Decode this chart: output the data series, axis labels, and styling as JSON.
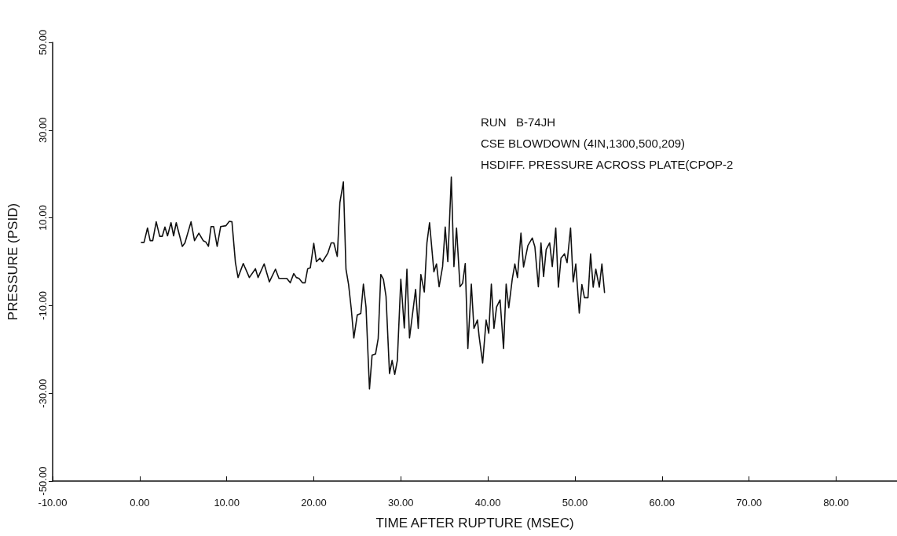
{
  "chart_data": {
    "type": "line",
    "xlabel": "TIME AFTER RUPTURE (MSEC)",
    "ylabel": "PRESSURE (PSID)",
    "annotations": [
      "RUN   B-74JH",
      "CSE BLOWDOWN (4IN,1300,500,209)",
      "HSDIFF. PRESSURE ACROSS PLATE(CPOP-2"
    ],
    "xlim": [
      -10,
      87
    ],
    "ylim": [
      -50,
      50
    ],
    "xticks": [
      {
        "value": -10,
        "label": "-10.00"
      },
      {
        "value": 0,
        "label": "0.00"
      },
      {
        "value": 10,
        "label": "10.00"
      },
      {
        "value": 20,
        "label": "20.00"
      },
      {
        "value": 30,
        "label": "30.00"
      },
      {
        "value": 40,
        "label": "40.00"
      },
      {
        "value": 50,
        "label": "50.00"
      },
      {
        "value": 60,
        "label": "60.00"
      },
      {
        "value": 70,
        "label": "70.00"
      },
      {
        "value": 80,
        "label": "80.00"
      }
    ],
    "yticks": [
      {
        "value": -50,
        "label": "-50.00"
      },
      {
        "value": -30,
        "label": "-30.00"
      },
      {
        "value": -10,
        "label": "-10.00"
      },
      {
        "value": 10,
        "label": "10.00"
      },
      {
        "value": 30,
        "label": "30.00"
      },
      {
        "value": 50,
        "label": "50.00"
      }
    ],
    "marker": "none",
    "line_style": "solid",
    "series": [
      {
        "color": "#111111",
        "x": [
          0.2,
          0.5,
          0.9,
          1.2,
          1.5,
          1.9,
          2.3,
          2.6,
          2.9,
          3.2,
          3.6,
          3.9,
          4.2,
          4.9,
          5.2,
          5.9,
          6.3,
          6.8,
          7.3,
          7.6,
          7.9,
          8.2,
          8.5,
          8.9,
          9.3,
          9.9,
          10.3,
          10.6,
          11.0,
          11.3,
          11.9,
          12.6,
          13.3,
          13.6,
          14.3,
          14.9,
          15.6,
          16.0,
          16.9,
          17.3,
          17.7,
          18.0,
          18.3,
          18.7,
          19.0,
          19.3,
          19.6,
          20.0,
          20.3,
          20.7,
          21.0,
          21.6,
          22.0,
          22.3,
          22.7,
          23.0,
          23.4,
          23.7,
          24.0,
          24.3,
          24.6,
          25.0,
          25.4,
          25.7,
          26.0,
          26.4,
          26.7,
          27.1,
          27.4,
          27.7,
          28.0,
          28.3,
          28.7,
          29.0,
          29.3,
          29.6,
          30.0,
          30.4,
          30.7,
          31.0,
          31.7,
          32.0,
          32.3,
          32.7,
          33.0,
          33.3,
          33.8,
          34.1,
          34.4,
          34.8,
          35.1,
          35.4,
          35.8,
          36.1,
          36.4,
          36.8,
          37.1,
          37.4,
          37.7,
          38.1,
          38.4,
          38.8,
          39.0,
          39.4,
          39.8,
          40.1,
          40.4,
          40.7,
          41.0,
          41.4,
          41.8,
          42.1,
          42.4,
          42.8,
          43.1,
          43.4,
          43.8,
          44.1,
          44.6,
          45.1,
          45.4,
          45.8,
          46.1,
          46.4,
          46.7,
          47.1,
          47.4,
          47.8,
          48.1,
          48.4,
          48.8,
          49.1,
          49.5,
          49.8,
          50.1,
          50.5,
          50.8,
          51.1,
          51.5,
          51.8,
          52.1,
          52.4,
          52.8,
          53.1,
          53.4
        ],
        "values": [
          4.4,
          4.4,
          7.7,
          4.8,
          4.8,
          9.1,
          5.8,
          5.8,
          7.9,
          5.9,
          8.9,
          5.9,
          8.9,
          3.5,
          4.3,
          9.1,
          4.8,
          6.5,
          4.8,
          4.5,
          3.5,
          8.0,
          8.0,
          3.5,
          8.0,
          8.2,
          9.2,
          9.1,
          -0.2,
          -3.6,
          -0.4,
          -3.6,
          -1.6,
          -3.6,
          -0.5,
          -4.6,
          -1.7,
          -3.8,
          -3.8,
          -4.8,
          -2.7,
          -3.6,
          -3.8,
          -4.8,
          -4.8,
          -1.6,
          -1.4,
          4.2,
          0.0,
          0.8,
          0.0,
          1.9,
          4.3,
          4.3,
          1.2,
          13.5,
          18.2,
          -1.7,
          -5.2,
          -10.6,
          -17.4,
          -12.1,
          -11.8,
          -5.1,
          -10.3,
          -29.0,
          -21.3,
          -21.0,
          -17.5,
          -2.9,
          -4.0,
          -7.9,
          -25.5,
          -22.5,
          -25.7,
          -22.5,
          -4.0,
          -15.1,
          -1.7,
          -17.4,
          -6.3,
          -15.2,
          -2.9,
          -6.9,
          4.3,
          8.9,
          -2.3,
          -0.5,
          -5.7,
          -1.1,
          7.9,
          0.0,
          19.3,
          -1.1,
          7.7,
          -5.7,
          -4.9,
          -0.4,
          -19.8,
          -5.1,
          -15.2,
          -13.3,
          -17.1,
          -23.1,
          -13.3,
          -16.3,
          -5.1,
          -15.2,
          -10.3,
          -8.7,
          -19.8,
          -5.1,
          -10.5,
          -4.0,
          -0.5,
          -3.6,
          6.5,
          -1.2,
          3.7,
          5.4,
          3.4,
          -5.7,
          4.3,
          -3.4,
          2.8,
          4.3,
          -1.1,
          7.7,
          -5.8,
          0.8,
          1.8,
          -0.2,
          7.7,
          -4.6,
          -0.5,
          -11.7,
          -5.2,
          -8.2,
          -8.2,
          1.8,
          -5.8,
          -1.7,
          -5.8,
          -0.5,
          -7.0
        ]
      }
    ]
  }
}
